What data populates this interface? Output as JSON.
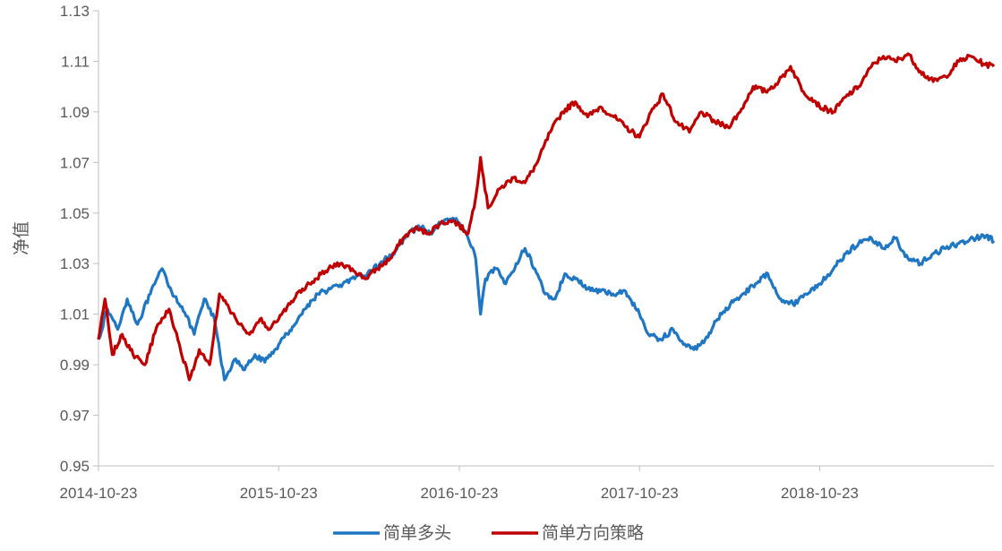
{
  "chart_data": {
    "type": "line",
    "title": "",
    "xlabel": "",
    "ylabel": "净值",
    "x_start": "2014-10-23",
    "x_end": "2019-10-11",
    "x_ticks": [
      "2014-10-23",
      "2015-10-23",
      "2016-10-23",
      "2017-10-23",
      "2018-10-23"
    ],
    "ylim": [
      0.95,
      1.13
    ],
    "y_ticks": [
      "0.95",
      "0.97",
      "0.99",
      "1.01",
      "1.03",
      "1.05",
      "1.07",
      "1.09",
      "1.11",
      "1.13"
    ],
    "grid": false,
    "legend_position": "bottom",
    "series": [
      {
        "name": "简单多头",
        "color": "#1f77c4",
        "points": [
          [
            "2014-10-23",
            1.0
          ],
          [
            "2014-11-10",
            1.012
          ],
          [
            "2014-12-01",
            1.004
          ],
          [
            "2014-12-20",
            1.016
          ],
          [
            "2015-01-10",
            1.006
          ],
          [
            "2015-02-05",
            1.018
          ],
          [
            "2015-03-01",
            1.028
          ],
          [
            "2015-03-20",
            1.019
          ],
          [
            "2015-04-10",
            1.013
          ],
          [
            "2015-05-05",
            1.002
          ],
          [
            "2015-05-25",
            1.016
          ],
          [
            "2015-06-15",
            1.008
          ],
          [
            "2015-07-05",
            0.984
          ],
          [
            "2015-07-25",
            0.992
          ],
          [
            "2015-08-15",
            0.988
          ],
          [
            "2015-09-05",
            0.994
          ],
          [
            "2015-09-25",
            0.991
          ],
          [
            "2015-10-23",
            0.998
          ],
          [
            "2015-11-20",
            1.005
          ],
          [
            "2015-12-15",
            1.012
          ],
          [
            "2016-01-10",
            1.018
          ],
          [
            "2016-02-05",
            1.02
          ],
          [
            "2016-03-01",
            1.022
          ],
          [
            "2016-03-25",
            1.024
          ],
          [
            "2016-04-20",
            1.026
          ],
          [
            "2016-05-15",
            1.03
          ],
          [
            "2016-06-10",
            1.034
          ],
          [
            "2016-07-05",
            1.04
          ],
          [
            "2016-08-01",
            1.045
          ],
          [
            "2016-08-25",
            1.042
          ],
          [
            "2016-09-15",
            1.046
          ],
          [
            "2016-10-10",
            1.048
          ],
          [
            "2016-10-23",
            1.046
          ],
          [
            "2016-11-10",
            1.04
          ],
          [
            "2016-11-25",
            1.032
          ],
          [
            "2016-12-05",
            1.01
          ],
          [
            "2016-12-15",
            1.024
          ],
          [
            "2017-01-05",
            1.028
          ],
          [
            "2017-01-25",
            1.022
          ],
          [
            "2017-02-15",
            1.03
          ],
          [
            "2017-03-05",
            1.036
          ],
          [
            "2017-03-25",
            1.028
          ],
          [
            "2017-04-15",
            1.018
          ],
          [
            "2017-05-05",
            1.016
          ],
          [
            "2017-05-25",
            1.026
          ],
          [
            "2017-06-15",
            1.024
          ],
          [
            "2017-07-10",
            1.02
          ],
          [
            "2017-08-05",
            1.019
          ],
          [
            "2017-08-30",
            1.018
          ],
          [
            "2017-09-25",
            1.019
          ],
          [
            "2017-10-23",
            1.01
          ],
          [
            "2017-11-10",
            1.002
          ],
          [
            "2017-12-05",
            1.0
          ],
          [
            "2017-12-30",
            1.004
          ],
          [
            "2018-01-20",
            0.998
          ],
          [
            "2018-02-10",
            0.996
          ],
          [
            "2018-03-05",
            1.0
          ],
          [
            "2018-03-30",
            1.008
          ],
          [
            "2018-04-25",
            1.014
          ],
          [
            "2018-05-20",
            1.018
          ],
          [
            "2018-06-15",
            1.022
          ],
          [
            "2018-07-10",
            1.026
          ],
          [
            "2018-08-05",
            1.016
          ],
          [
            "2018-08-30",
            1.014
          ],
          [
            "2018-09-25",
            1.018
          ],
          [
            "2018-10-23",
            1.022
          ],
          [
            "2018-11-20",
            1.028
          ],
          [
            "2018-12-15",
            1.034
          ],
          [
            "2019-01-10",
            1.038
          ],
          [
            "2019-02-05",
            1.04
          ],
          [
            "2019-03-01",
            1.036
          ],
          [
            "2019-03-25",
            1.04
          ],
          [
            "2019-04-20",
            1.032
          ],
          [
            "2019-05-15",
            1.03
          ],
          [
            "2019-06-10",
            1.034
          ],
          [
            "2019-07-05",
            1.036
          ],
          [
            "2019-08-01",
            1.038
          ],
          [
            "2019-08-30",
            1.04
          ],
          [
            "2019-09-25",
            1.041
          ],
          [
            "2019-10-11",
            1.039
          ]
        ]
      },
      {
        "name": "简单方向策略",
        "color": "#c00000",
        "points": [
          [
            "2014-10-23",
            1.0
          ],
          [
            "2014-11-05",
            1.016
          ],
          [
            "2014-11-20",
            0.994
          ],
          [
            "2014-12-10",
            1.002
          ],
          [
            "2015-01-01",
            0.994
          ],
          [
            "2015-01-25",
            0.99
          ],
          [
            "2015-02-20",
            1.006
          ],
          [
            "2015-03-15",
            1.012
          ],
          [
            "2015-04-05",
            0.998
          ],
          [
            "2015-04-25",
            0.984
          ],
          [
            "2015-05-15",
            0.996
          ],
          [
            "2015-06-05",
            0.99
          ],
          [
            "2015-06-25",
            1.018
          ],
          [
            "2015-07-15",
            1.012
          ],
          [
            "2015-08-05",
            1.006
          ],
          [
            "2015-08-25",
            1.002
          ],
          [
            "2015-09-15",
            1.008
          ],
          [
            "2015-10-05",
            1.004
          ],
          [
            "2015-10-23",
            1.008
          ],
          [
            "2015-11-15",
            1.014
          ],
          [
            "2015-12-10",
            1.02
          ],
          [
            "2016-01-05",
            1.024
          ],
          [
            "2016-02-01",
            1.028
          ],
          [
            "2016-02-25",
            1.03
          ],
          [
            "2016-03-20",
            1.028
          ],
          [
            "2016-04-15",
            1.024
          ],
          [
            "2016-05-10",
            1.028
          ],
          [
            "2016-06-05",
            1.032
          ],
          [
            "2016-07-01",
            1.04
          ],
          [
            "2016-07-25",
            1.044
          ],
          [
            "2016-08-20",
            1.042
          ],
          [
            "2016-09-15",
            1.046
          ],
          [
            "2016-10-10",
            1.047
          ],
          [
            "2016-10-23",
            1.045
          ],
          [
            "2016-11-10",
            1.042
          ],
          [
            "2016-11-25",
            1.056
          ],
          [
            "2016-12-05",
            1.072
          ],
          [
            "2016-12-20",
            1.052
          ],
          [
            "2017-01-15",
            1.06
          ],
          [
            "2017-02-10",
            1.064
          ],
          [
            "2017-03-05",
            1.062
          ],
          [
            "2017-03-30",
            1.07
          ],
          [
            "2017-04-25",
            1.082
          ],
          [
            "2017-05-20",
            1.09
          ],
          [
            "2017-06-15",
            1.094
          ],
          [
            "2017-07-10",
            1.088
          ],
          [
            "2017-08-05",
            1.092
          ],
          [
            "2017-09-01",
            1.088
          ],
          [
            "2017-09-25",
            1.084
          ],
          [
            "2017-10-23",
            1.08
          ],
          [
            "2017-11-15",
            1.09
          ],
          [
            "2017-12-10",
            1.097
          ],
          [
            "2018-01-05",
            1.086
          ],
          [
            "2018-02-01",
            1.082
          ],
          [
            "2018-02-25",
            1.09
          ],
          [
            "2018-03-25",
            1.086
          ],
          [
            "2018-04-20",
            1.084
          ],
          [
            "2018-05-15",
            1.09
          ],
          [
            "2018-06-10",
            1.1
          ],
          [
            "2018-07-05",
            1.098
          ],
          [
            "2018-08-01",
            1.102
          ],
          [
            "2018-08-25",
            1.108
          ],
          [
            "2018-09-20",
            1.098
          ],
          [
            "2018-10-15",
            1.094
          ],
          [
            "2018-10-23",
            1.092
          ],
          [
            "2018-11-20",
            1.09
          ],
          [
            "2018-12-15",
            1.096
          ],
          [
            "2019-01-10",
            1.1
          ],
          [
            "2019-02-05",
            1.108
          ],
          [
            "2019-03-01",
            1.112
          ],
          [
            "2019-03-25",
            1.11
          ],
          [
            "2019-04-20",
            1.113
          ],
          [
            "2019-05-15",
            1.106
          ],
          [
            "2019-06-10",
            1.102
          ],
          [
            "2019-07-05",
            1.104
          ],
          [
            "2019-08-01",
            1.11
          ],
          [
            "2019-08-25",
            1.112
          ],
          [
            "2019-09-20",
            1.109
          ],
          [
            "2019-10-11",
            1.108
          ]
        ]
      }
    ]
  }
}
